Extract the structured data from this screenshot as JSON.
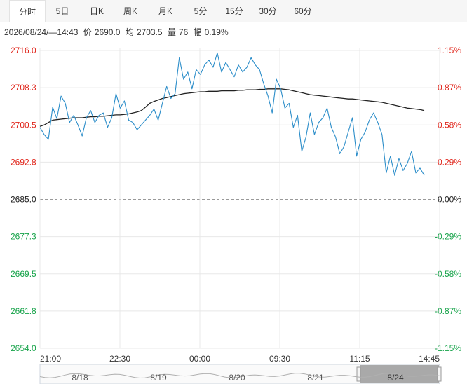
{
  "tabs": [
    {
      "label": "分时",
      "active": true
    },
    {
      "label": "5日"
    },
    {
      "label": "日K"
    },
    {
      "label": "周K"
    },
    {
      "label": "月K"
    },
    {
      "label": "5分"
    },
    {
      "label": "15分"
    },
    {
      "label": "30分"
    },
    {
      "label": "60分"
    }
  ],
  "info": {
    "datetime": "2026/08/24/—14:43",
    "price_label": "价",
    "price": "2690.0",
    "avg_label": "均",
    "avg": "2703.5",
    "vol_label": "量",
    "vol": "76",
    "change_label": "幅",
    "change": "0.19%"
  },
  "colors": {
    "price_line": "#2b8dc9",
    "avg_line": "#222222",
    "up": "#e0251b",
    "down": "#17a34a",
    "grid": "#e8e8e8"
  },
  "chart_data": {
    "type": "line",
    "prev_close": 2685.0,
    "ylim": [
      2654.0,
      2716.0
    ],
    "y_ticks_left": [
      "2716.0",
      "2708.3",
      "2700.5",
      "2692.8",
      "2685.0",
      "2677.3",
      "2669.5",
      "2661.8",
      "2654.0"
    ],
    "y_ticks_right": [
      "1.15%",
      "0.87%",
      "0.58%",
      "0.29%",
      "0.00%",
      "-0.29%",
      "-0.58%",
      "-0.87%",
      "-1.15%"
    ],
    "x_ticks": [
      "21:00",
      "22:30",
      "00:00",
      "09:30",
      "11:15",
      "14:45"
    ],
    "series": [
      {
        "name": "price",
        "values": [
          2700.0,
          2698.5,
          2697.5,
          2704.2,
          2701.8,
          2706.5,
          2705.0,
          2701.0,
          2702.5,
          2700.5,
          2698.2,
          2702.0,
          2703.5,
          2701.0,
          2702.5,
          2703.0,
          2700.0,
          2702.0,
          2707.0,
          2704.0,
          2705.5,
          2701.5,
          2701.0,
          2699.5,
          2700.5,
          2701.5,
          2702.5,
          2703.8,
          2701.5,
          2705.0,
          2708.5,
          2706.0,
          2707.0,
          2714.5,
          2710.0,
          2711.5,
          2708.0,
          2712.0,
          2711.0,
          2713.0,
          2714.0,
          2712.5,
          2715.5,
          2711.5,
          2713.5,
          2712.0,
          2710.5,
          2713.0,
          2711.5,
          2712.5,
          2714.5,
          2713.0,
          2712.0,
          2709.0,
          2706.5,
          2703.0,
          2710.0,
          2708.0,
          2704.0,
          2705.0,
          2700.0,
          2702.5,
          2695.0,
          2698.0,
          2703.0,
          2698.5,
          2701.0,
          2702.0,
          2704.0,
          2700.0,
          2698.0,
          2694.5,
          2696.0,
          2699.0,
          2702.0,
          2694.0,
          2697.5,
          2699.0,
          2701.5,
          2703.0,
          2701.0,
          2698.5,
          2690.5,
          2694.0,
          2690.0,
          2693.5,
          2691.0,
          2692.5,
          2695.0,
          2690.5,
          2691.5,
          2690.0
        ],
        "note_points": 92
      },
      {
        "name": "avg",
        "values": [
          2700.2,
          2700.5,
          2701.0,
          2701.5,
          2701.6,
          2701.7,
          2701.8,
          2701.9,
          2702.0,
          2702.0,
          2702.0,
          2702.1,
          2702.2,
          2702.2,
          2702.3,
          2702.3,
          2702.4,
          2702.5,
          2702.6,
          2702.6,
          2702.7,
          2702.8,
          2703.0,
          2703.2,
          2703.5,
          2704.2,
          2705.0,
          2705.4,
          2705.7,
          2706.0,
          2706.2,
          2706.4,
          2706.6,
          2706.8,
          2707.0,
          2707.1,
          2707.2,
          2707.3,
          2707.4,
          2707.4,
          2707.5,
          2707.5,
          2707.5,
          2707.6,
          2707.6,
          2707.6,
          2707.6,
          2707.7,
          2707.7,
          2707.8,
          2707.8,
          2707.8,
          2707.9,
          2707.9,
          2708.0,
          2708.0,
          2708.0,
          2708.0,
          2707.9,
          2707.8,
          2707.6,
          2707.4,
          2707.2,
          2707.0,
          2706.8,
          2706.7,
          2706.6,
          2706.5,
          2706.4,
          2706.3,
          2706.2,
          2706.1,
          2706.0,
          2705.9,
          2705.9,
          2705.8,
          2705.7,
          2705.6,
          2705.5,
          2705.4,
          2705.3,
          2705.2,
          2705.0,
          2704.8,
          2704.6,
          2704.4,
          2704.2,
          2704.0,
          2703.9,
          2703.8,
          2703.7,
          2703.5
        ]
      }
    ]
  },
  "navigator": {
    "dates": [
      "8/18",
      "8/19",
      "8/20",
      "8/21",
      "8/24"
    ]
  }
}
